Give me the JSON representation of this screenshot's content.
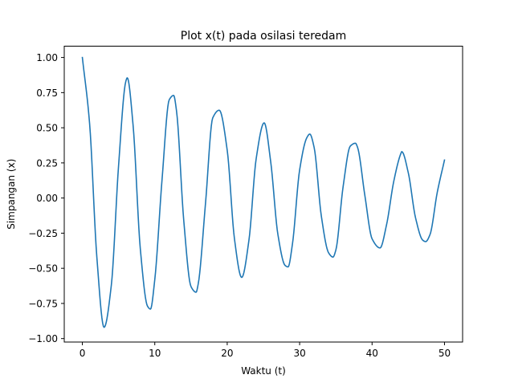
{
  "chart_data": {
    "type": "line",
    "title": "Plot x(t) pada osilasi teredam",
    "xlabel": "Waktu (t)",
    "ylabel": "Simpangan (x)",
    "xlim": [
      -2.5,
      52.5
    ],
    "ylim": [
      -1.0246,
      1.0805
    ],
    "xticks": [
      0,
      10,
      20,
      30,
      40,
      50
    ],
    "xtick_labels": [
      "0",
      "10",
      "20",
      "30",
      "40",
      "50"
    ],
    "yticks": [
      -1.0,
      -0.75,
      -0.5,
      -0.25,
      0.0,
      0.25,
      0.5,
      0.75,
      1.0
    ],
    "ytick_labels": [
      "−1.00",
      "−0.75",
      "−0.50",
      "−0.25",
      "0.00",
      "0.25",
      "0.50",
      "0.75",
      "1.00"
    ],
    "grid": false,
    "legend": "none",
    "series": [
      {
        "color": "#1f77b4",
        "x": [
          0,
          1,
          2,
          3,
          4,
          5,
          6,
          6.2,
          7,
          8,
          9,
          9.4,
          10,
          11,
          12,
          12.6,
          13,
          14,
          15,
          15.7,
          16,
          17,
          18,
          18.9,
          20,
          21,
          22,
          23,
          24,
          25.1,
          26,
          27,
          28,
          28.4,
          29,
          30,
          31,
          31.4,
          32,
          33,
          34,
          34.6,
          35,
          36,
          37,
          37.7,
          38,
          39,
          40,
          41.1,
          42,
          43,
          44,
          44.1,
          45,
          46,
          47,
          47.4,
          48,
          49,
          50
        ],
        "y": [
          1.0,
          0.53,
          -0.42,
          -0.92,
          -0.62,
          0.23,
          0.83,
          0.855,
          0.52,
          -0.36,
          -0.77,
          -0.79,
          -0.58,
          0.13,
          0.7,
          0.73,
          0.62,
          -0.16,
          -0.63,
          -0.67,
          -0.61,
          -0.04,
          0.57,
          0.625,
          0.34,
          -0.29,
          -0.565,
          -0.3,
          0.28,
          0.535,
          0.26,
          -0.26,
          -0.48,
          -0.49,
          -0.33,
          0.2,
          0.43,
          0.455,
          0.36,
          -0.13,
          -0.39,
          -0.42,
          -0.37,
          0.08,
          0.37,
          0.39,
          0.36,
          0.02,
          -0.29,
          -0.355,
          -0.19,
          0.12,
          0.32,
          0.33,
          0.18,
          -0.14,
          -0.3,
          -0.31,
          -0.26,
          0.04,
          0.27
        ]
      }
    ]
  }
}
